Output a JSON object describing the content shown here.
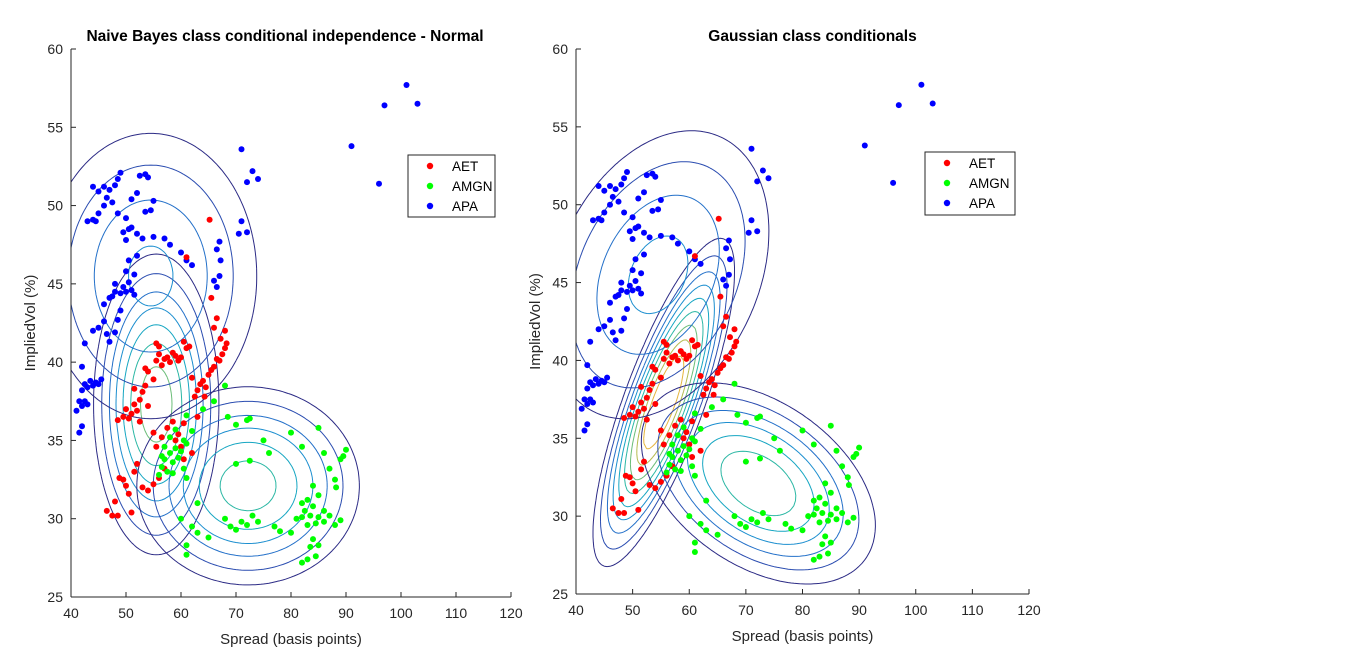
{
  "figure": {
    "background": "#ffffff"
  },
  "colors": {
    "AET": "#ff0000",
    "AMGN": "#00ff00",
    "APA": "#0000ff",
    "axis": "#262626",
    "contour_palette": [
      "#2b2a85",
      "#2a4cb0",
      "#2370c9",
      "#1b8ecf",
      "#16a6c2",
      "#2bb7a4",
      "#6bbd78",
      "#b4bb4f",
      "#e5b43c"
    ]
  },
  "chart_data": [
    {
      "type": "scatter",
      "title": "Naive Bayes class conditional independence - Normal",
      "xlabel": "Spread (basis points)",
      "ylabel": "ImpliedVol (%)",
      "xlim": [
        40,
        120
      ],
      "ylim": [
        25,
        60
      ],
      "xticks": [
        "40",
        "50",
        "60",
        "70",
        "80",
        "90",
        "100",
        "110",
        "120"
      ],
      "yticks": [
        "25",
        "30",
        "35",
        "40",
        "45",
        "50",
        "55",
        "60"
      ],
      "contours": "naive",
      "legend": {
        "position": "top-right",
        "entries": [
          "AET",
          "AMGN",
          "APA"
        ]
      }
    },
    {
      "type": "scatter",
      "title": "Gaussian class conditionals",
      "xlabel": "Spread (basis points)",
      "ylabel": "ImpliedVol (%)",
      "xlim": [
        40,
        120
      ],
      "ylim": [
        25,
        60
      ],
      "xticks": [
        "40",
        "50",
        "60",
        "70",
        "80",
        "90",
        "100",
        "110",
        "120"
      ],
      "yticks": [
        "25",
        "30",
        "35",
        "40",
        "45",
        "50",
        "55",
        "60"
      ],
      "contours": "full",
      "legend": {
        "position": "top-right",
        "entries": [
          "AET",
          "AMGN",
          "APA"
        ]
      }
    }
  ],
  "series": {
    "AET": [
      [
        46.5,
        30.5
      ],
      [
        47.5,
        30.2
      ],
      [
        48,
        31.1
      ],
      [
        48.5,
        30.2
      ],
      [
        48.8,
        32.6
      ],
      [
        49.5,
        32.5
      ],
      [
        50,
        32.1
      ],
      [
        50.5,
        31.6
      ],
      [
        51,
        30.4
      ],
      [
        51.5,
        33
      ],
      [
        52,
        33.5
      ],
      [
        53,
        32
      ],
      [
        54,
        31.8
      ],
      [
        55,
        32.2
      ],
      [
        56,
        32.6
      ],
      [
        57,
        33.2
      ],
      [
        55.5,
        34.6
      ],
      [
        56.5,
        35.2
      ],
      [
        57.5,
        35.8
      ],
      [
        58.5,
        36.2
      ],
      [
        59.5,
        35.4
      ],
      [
        60,
        34.6
      ],
      [
        60.5,
        33.8
      ],
      [
        59,
        35
      ],
      [
        60.5,
        36.1
      ],
      [
        55,
        35.5
      ],
      [
        48.5,
        36.3
      ],
      [
        49.5,
        36.5
      ],
      [
        50,
        37
      ],
      [
        50.5,
        36.4
      ],
      [
        51,
        36.7
      ],
      [
        51.5,
        37.3
      ],
      [
        52,
        36.9
      ],
      [
        52.5,
        37.6
      ],
      [
        53,
        38.1
      ],
      [
        53.5,
        38.5
      ],
      [
        54,
        37.2
      ],
      [
        52.5,
        36.2
      ],
      [
        51.5,
        38.3
      ],
      [
        53.5,
        39.6
      ],
      [
        54,
        39.4
      ],
      [
        55,
        38.9
      ],
      [
        55.5,
        40.1
      ],
      [
        56,
        40.5
      ],
      [
        56.5,
        39.8
      ],
      [
        57,
        40.2
      ],
      [
        57.5,
        40.3
      ],
      [
        58,
        40
      ],
      [
        58.5,
        40.6
      ],
      [
        59,
        40.4
      ],
      [
        59.5,
        40.1
      ],
      [
        60,
        40.3
      ],
      [
        55.5,
        41.2
      ],
      [
        56,
        41
      ],
      [
        60.5,
        41.3
      ],
      [
        61,
        40.9
      ],
      [
        61.5,
        41
      ],
      [
        62,
        39
      ],
      [
        62.5,
        37.8
      ],
      [
        63,
        38.2
      ],
      [
        63.5,
        38.6
      ],
      [
        64,
        38.8
      ],
      [
        64.5,
        38.4
      ],
      [
        65,
        39.2
      ],
      [
        65.5,
        39.5
      ],
      [
        66,
        39.7
      ],
      [
        66.5,
        40.2
      ],
      [
        67,
        40.1
      ],
      [
        67.5,
        40.5
      ],
      [
        68,
        40.9
      ],
      [
        68.3,
        41.2
      ],
      [
        68,
        42
      ],
      [
        67.2,
        41.5
      ],
      [
        66,
        42.2
      ],
      [
        66.5,
        42.8
      ],
      [
        65.5,
        44.1
      ],
      [
        65.2,
        49.1
      ],
      [
        61,
        46.7
      ],
      [
        63,
        36.5
      ],
      [
        64.3,
        37.8
      ],
      [
        62,
        34.2
      ]
    ],
    "AMGN": [
      [
        56,
        32.8
      ],
      [
        56.5,
        33.3
      ],
      [
        57,
        33.8
      ],
      [
        57.5,
        33
      ],
      [
        58,
        34.2
      ],
      [
        58.5,
        33.6
      ],
      [
        59,
        34.5
      ],
      [
        59.5,
        33.9
      ],
      [
        60,
        34.3
      ],
      [
        60.5,
        35
      ],
      [
        61,
        34.8
      ],
      [
        58,
        35.2
      ],
      [
        59,
        35.7
      ],
      [
        57,
        34.6
      ],
      [
        56.5,
        34
      ],
      [
        58.5,
        32.9
      ],
      [
        60.5,
        33.2
      ],
      [
        61,
        32.6
      ],
      [
        60,
        30
      ],
      [
        61,
        28.3
      ],
      [
        61,
        27.7
      ],
      [
        62,
        29.5
      ],
      [
        63,
        29.1
      ],
      [
        63,
        31
      ],
      [
        65,
        28.8
      ],
      [
        64,
        37
      ],
      [
        66,
        37.5
      ],
      [
        68,
        38.5
      ],
      [
        61,
        36.6
      ],
      [
        62,
        35.6
      ],
      [
        68.5,
        36.5
      ],
      [
        68,
        30
      ],
      [
        69,
        29.5
      ],
      [
        70,
        29.3
      ],
      [
        71,
        29.8
      ],
      [
        72,
        29.6
      ],
      [
        73,
        30.2
      ],
      [
        74,
        29.8
      ],
      [
        75,
        35
      ],
      [
        76,
        34.2
      ],
      [
        70,
        33.5
      ],
      [
        70,
        36
      ],
      [
        72,
        36.3
      ],
      [
        72.5,
        36.4
      ],
      [
        77,
        29.5
      ],
      [
        78,
        29.2
      ],
      [
        80,
        29.1
      ],
      [
        81,
        30
      ],
      [
        82,
        31
      ],
      [
        82.5,
        30.5
      ],
      [
        83,
        31.2
      ],
      [
        83.5,
        30.2
      ],
      [
        84,
        30.8
      ],
      [
        84.5,
        29.7
      ],
      [
        85,
        31.5
      ],
      [
        84,
        32.1
      ],
      [
        82,
        30.1
      ],
      [
        83,
        29.6
      ],
      [
        85,
        30.1
      ],
      [
        80,
        35.5
      ],
      [
        82,
        34.6
      ],
      [
        85,
        35.8
      ],
      [
        86,
        34.2
      ],
      [
        87,
        33.2
      ],
      [
        88,
        32.5
      ],
      [
        88.2,
        32
      ],
      [
        89,
        33.8
      ],
      [
        89.5,
        34
      ],
      [
        90,
        34.4
      ],
      [
        86,
        29.8
      ],
      [
        87,
        30.2
      ],
      [
        88,
        29.6
      ],
      [
        89,
        29.9
      ],
      [
        86,
        30.5
      ],
      [
        85,
        28.3
      ],
      [
        84.5,
        27.6
      ],
      [
        83,
        27.4
      ],
      [
        82,
        27.2
      ],
      [
        83.5,
        28.2
      ],
      [
        84,
        28.7
      ],
      [
        72.5,
        33.7
      ]
    ],
    "APA": [
      [
        41,
        36.9
      ],
      [
        41.5,
        35.5
      ],
      [
        42,
        35.9
      ],
      [
        41.5,
        37.5
      ],
      [
        42,
        37.2
      ],
      [
        42.5,
        37.5
      ],
      [
        43,
        37.3
      ],
      [
        42,
        38.2
      ],
      [
        42.5,
        38.6
      ],
      [
        43,
        38.4
      ],
      [
        43.5,
        38.8
      ],
      [
        44,
        38.5
      ],
      [
        44.5,
        38.7
      ],
      [
        45,
        38.6
      ],
      [
        45.5,
        38.9
      ],
      [
        42,
        39.7
      ],
      [
        42.5,
        41.2
      ],
      [
        44,
        42
      ],
      [
        45,
        42.2
      ],
      [
        46,
        42.6
      ],
      [
        46.5,
        41.8
      ],
      [
        47,
        41.3
      ],
      [
        48,
        41.9
      ],
      [
        48.5,
        42.7
      ],
      [
        49,
        43.3
      ],
      [
        46,
        43.7
      ],
      [
        47,
        44.1
      ],
      [
        47.5,
        44.2
      ],
      [
        48,
        44.5
      ],
      [
        49,
        44.4
      ],
      [
        49.5,
        44.8
      ],
      [
        50,
        44.5
      ],
      [
        50.5,
        45.1
      ],
      [
        51,
        44.6
      ],
      [
        51.5,
        44.3
      ],
      [
        50,
        45.8
      ],
      [
        51.5,
        45.6
      ],
      [
        50.5,
        46.5
      ],
      [
        48,
        45
      ],
      [
        52,
        46.8
      ],
      [
        50,
        47.8
      ],
      [
        50.5,
        48.5
      ],
      [
        51,
        48.6
      ],
      [
        52,
        48.2
      ],
      [
        53,
        47.9
      ],
      [
        55,
        48
      ],
      [
        57,
        47.9
      ],
      [
        58,
        47.5
      ],
      [
        60,
        47
      ],
      [
        61,
        46.5
      ],
      [
        62,
        46.2
      ],
      [
        43,
        49
      ],
      [
        44,
        49.1
      ],
      [
        44.5,
        49
      ],
      [
        45,
        49.5
      ],
      [
        46,
        50
      ],
      [
        46.5,
        50.5
      ],
      [
        47,
        51
      ],
      [
        48,
        51.3
      ],
      [
        48.5,
        51.7
      ],
      [
        49,
        52.1
      ],
      [
        44,
        51.2
      ],
      [
        45,
        50.9
      ],
      [
        46,
        51.2
      ],
      [
        47.5,
        50.2
      ],
      [
        48.5,
        49.5
      ],
      [
        49.5,
        48.3
      ],
      [
        50,
        49.2
      ],
      [
        51,
        50.4
      ],
      [
        52,
        50.8
      ],
      [
        52.5,
        51.9
      ],
      [
        53.5,
        49.6
      ],
      [
        54.5,
        49.7
      ],
      [
        55,
        50.3
      ],
      [
        54,
        51.8
      ],
      [
        53.5,
        52
      ],
      [
        66,
        45.2
      ],
      [
        66.5,
        44.8
      ],
      [
        67,
        45.5
      ],
      [
        67.2,
        46.5
      ],
      [
        66.5,
        47.2
      ],
      [
        67,
        47.7
      ],
      [
        70.5,
        48.2
      ],
      [
        71,
        49
      ],
      [
        72,
        48.3
      ],
      [
        71,
        53.6
      ],
      [
        72,
        51.5
      ],
      [
        73,
        52.2
      ],
      [
        74,
        51.7
      ],
      [
        91,
        53.8
      ],
      [
        96,
        51.4
      ],
      [
        97,
        56.4
      ],
      [
        101,
        57.7
      ],
      [
        103,
        56.5
      ]
    ]
  }
}
